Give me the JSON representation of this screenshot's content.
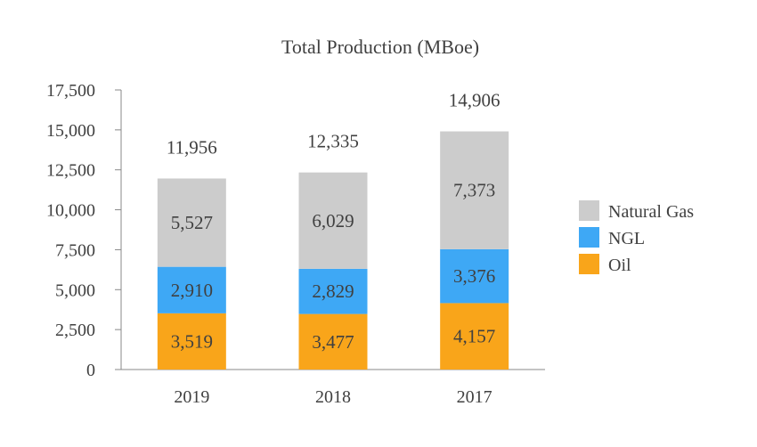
{
  "chart_data": {
    "type": "bar",
    "stacked": true,
    "title": "Total Production (MBoe)",
    "categories": [
      "2019",
      "2018",
      "2017"
    ],
    "series": [
      {
        "name": "Oil",
        "values": [
          3519,
          3477,
          4157
        ],
        "labels": [
          "3,519",
          "3,477",
          "4,157"
        ],
        "color": "#F9A51A"
      },
      {
        "name": "NGL",
        "values": [
          2910,
          2829,
          3376
        ],
        "labels": [
          "2,910",
          "2,829",
          "3,376"
        ],
        "color": "#3EA8F5"
      },
      {
        "name": "Natural Gas",
        "values": [
          5527,
          6029,
          7373
        ],
        "labels": [
          "5,527",
          "6,029",
          "7,373"
        ],
        "color": "#CCCCCC"
      }
    ],
    "totals": [
      "11,956",
      "12,335",
      "14,906"
    ],
    "ylim": [
      0,
      17500
    ],
    "yticks": [
      "0",
      "2,500",
      "5,000",
      "7,500",
      "10,000",
      "12,500",
      "15,000",
      "17,500"
    ],
    "legend_placement": "right",
    "grid": false
  }
}
